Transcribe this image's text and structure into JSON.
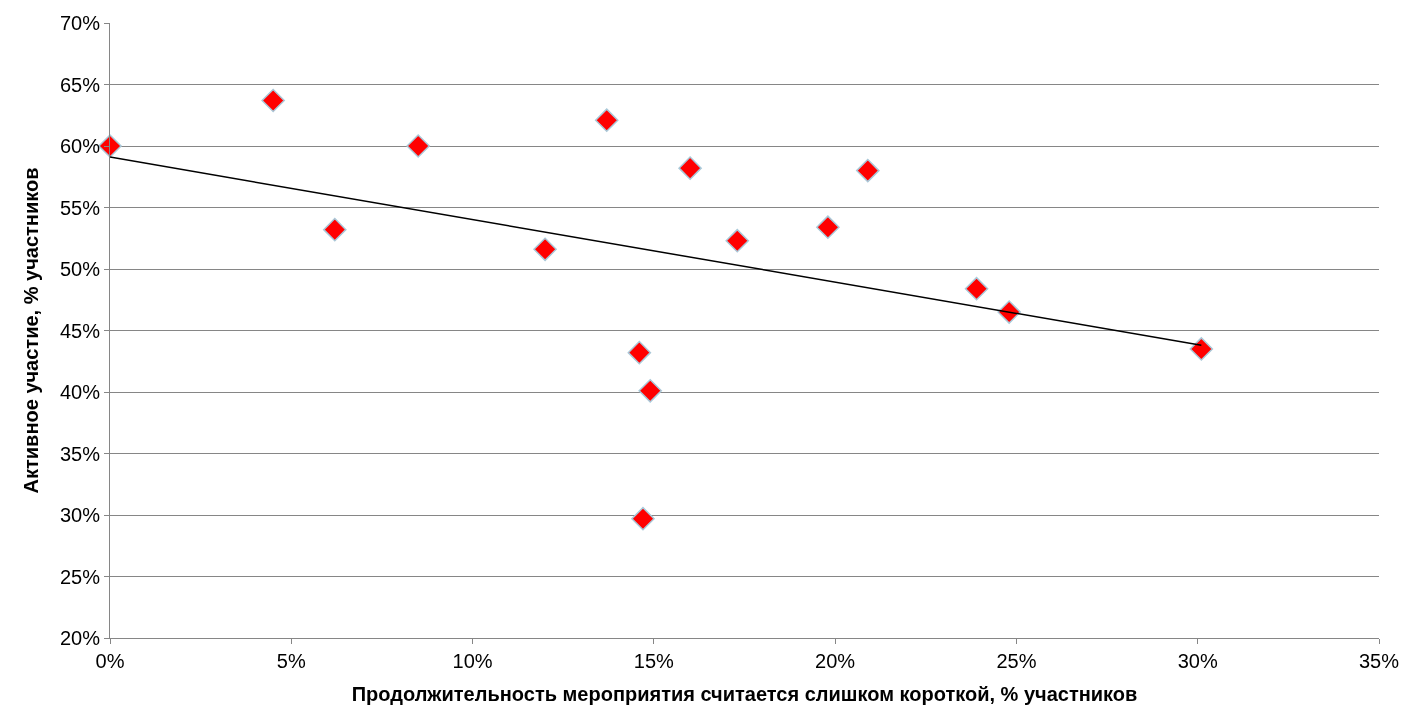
{
  "chart_data": {
    "type": "scatter",
    "xlabel": "Продолжительность мероприятия считается слишком короткой, % участников",
    "ylabel": "Активное участие, % участников",
    "x": [
      0,
      4.5,
      6.2,
      8.5,
      12.0,
      13.7,
      14.6,
      14.9,
      14.7,
      16.0,
      17.3,
      19.8,
      20.9,
      23.9,
      24.8,
      30.1
    ],
    "series": [
      {
        "color": "#ff0000",
        "marker": "diamond",
        "values": [
          60.0,
          63.7,
          53.2,
          60.0,
          51.6,
          62.1,
          43.2,
          40.1,
          29.7,
          58.2,
          52.3,
          53.4,
          58.0,
          48.4,
          46.5,
          43.5
        ]
      },
      {
        "type": "line",
        "color": "#000000",
        "marker": "none",
        "line_style": "solid",
        "x": [
          0,
          30.1
        ],
        "values": [
          59.1,
          43.8
        ]
      }
    ],
    "xlim": [
      0,
      35
    ],
    "xticks": [
      {
        "value": 0,
        "label": "0%"
      },
      {
        "value": 5,
        "label": "5%"
      },
      {
        "value": 10,
        "label": "10%"
      },
      {
        "value": 15,
        "label": "15%"
      },
      {
        "value": 20,
        "label": "20%"
      },
      {
        "value": 25,
        "label": "25%"
      },
      {
        "value": 30,
        "label": "30%"
      },
      {
        "value": 35,
        "label": "35%"
      }
    ],
    "ylim": [
      20,
      70
    ],
    "yticks": [
      {
        "value": 20,
        "label": "20%"
      },
      {
        "value": 25,
        "label": "25%"
      },
      {
        "value": 30,
        "label": "30%"
      },
      {
        "value": 35,
        "label": "35%"
      },
      {
        "value": 40,
        "label": "40%"
      },
      {
        "value": 45,
        "label": "45%"
      },
      {
        "value": 50,
        "label": "50%"
      },
      {
        "value": 55,
        "label": "55%"
      },
      {
        "value": 60,
        "label": "60%"
      },
      {
        "value": 65,
        "label": "65%"
      },
      {
        "value": 70,
        "label": "70%"
      }
    ],
    "grid": "y"
  }
}
